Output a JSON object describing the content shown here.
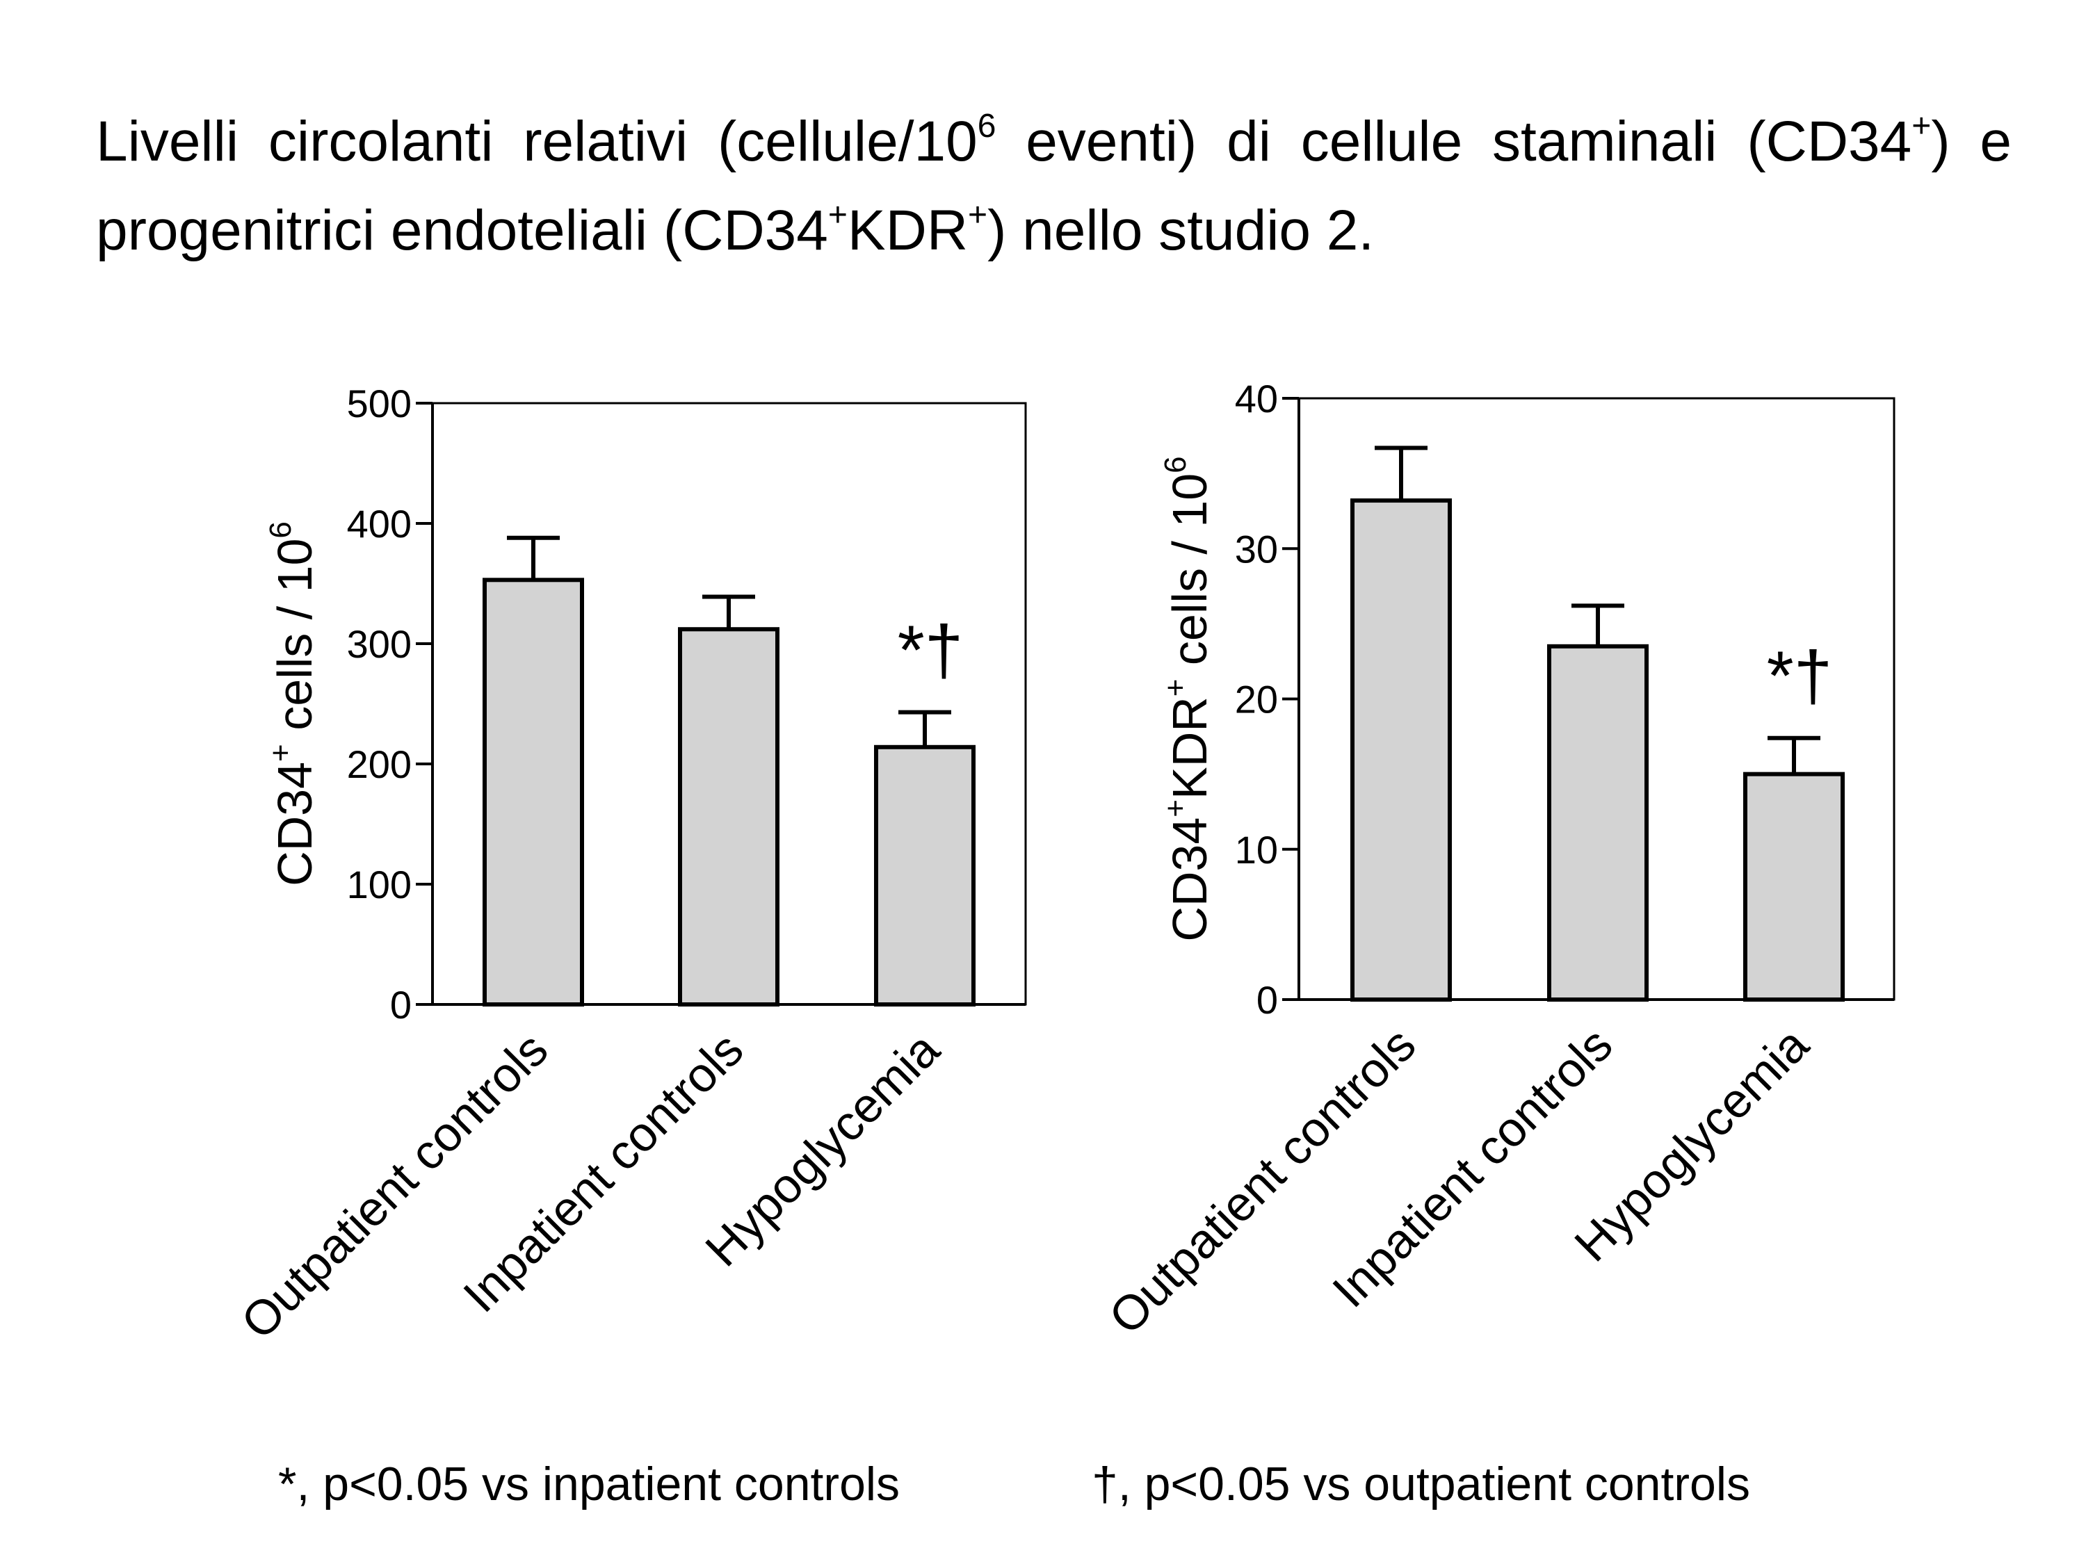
{
  "page": {
    "title_part1": "Livelli circolanti relativi (cellule/10",
    "title_sup1": "6",
    "title_part2": " eventi) di cellule staminali (CD34",
    "title_sup2": "+",
    "title_part3": ") e progenitrici endoteliali (CD34",
    "title_sup3": "+",
    "title_part4": "KDR",
    "title_sup4": "+",
    "title_part5": ") nello studio 2.",
    "footnote_left": "*, p<0.05 vs inpatient controls",
    "footnote_right": "†, p<0.05 vs outpatient controls"
  },
  "chart_data": [
    {
      "type": "bar",
      "categories": [
        "Outpatient controls",
        "Inpatient controls",
        "Hypoglycemia"
      ],
      "values": [
        353,
        312,
        214
      ],
      "errors": [
        35,
        27,
        29
      ],
      "ylabel_main": "CD34",
      "ylabel_sup": "+",
      "ylabel_rest": " cells / 10",
      "ylabel_sup2": "6",
      "ylim": [
        0,
        500
      ],
      "ticks": [
        0,
        100,
        200,
        300,
        400,
        500
      ],
      "significance": {
        "category": "Hypoglycemia",
        "marks": "*†"
      },
      "bar_color": "#d3d3d3"
    },
    {
      "type": "bar",
      "categories": [
        "Outpatient controls",
        "Inpatient controls",
        "Hypoglycemia"
      ],
      "values": [
        33.2,
        23.5,
        15.0
      ],
      "errors": [
        3.5,
        2.7,
        2.4
      ],
      "ylabel_main": "CD34",
      "ylabel_sup": "+",
      "ylabel_rest": "KDR",
      "ylabel_sup2": "+",
      "ylabel_rest2": " cells / 10",
      "ylabel_sup3": "6",
      "ylim": [
        0,
        40
      ],
      "ticks": [
        0,
        10,
        20,
        30,
        40
      ],
      "significance": {
        "category": "Hypoglycemia",
        "marks": "*†"
      },
      "bar_color": "#d3d3d3"
    }
  ]
}
